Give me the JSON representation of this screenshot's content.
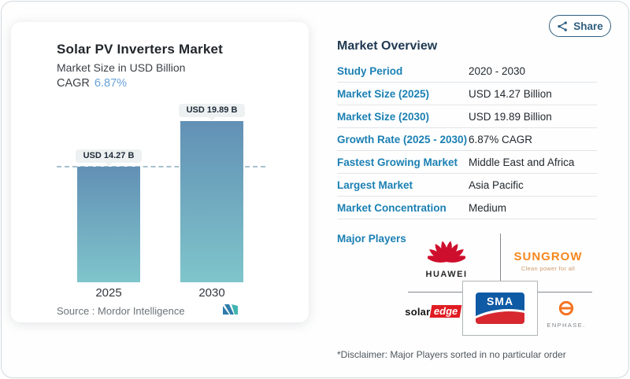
{
  "share": {
    "label": "Share"
  },
  "chart": {
    "title": "Solar PV Inverters Market",
    "subtitle": "Market Size in USD Billion",
    "cagr_label": "CAGR",
    "cagr_value": "6.87%",
    "source": "Source :  Mordor Intelligence"
  },
  "chart_data": {
    "type": "bar",
    "title": "Solar PV Inverters Market",
    "ylabel": "Market Size in USD Billion",
    "categories": [
      "2025",
      "2030"
    ],
    "values": [
      14.27,
      19.89
    ],
    "labels": [
      "USD 14.27 B",
      "USD 19.89 B"
    ],
    "reference_line": 14.27,
    "cagr": "6.87%",
    "grid": false,
    "legend": "none"
  },
  "overview": {
    "heading": "Market Overview",
    "rows": [
      {
        "label": "Study Period",
        "value": "2020 - 2030"
      },
      {
        "label": "Market Size (2025)",
        "value": "USD 14.27 Billion"
      },
      {
        "label": "Market Size (2030)",
        "value": "USD 19.89 Billion"
      },
      {
        "label": "Growth Rate (2025 - 2030)",
        "value": "6.87% CAGR"
      },
      {
        "label": "Fastest Growing Market",
        "value": "Middle East and Africa"
      },
      {
        "label": "Largest Market",
        "value": "Asia Pacific"
      },
      {
        "label": "Market Concentration",
        "value": "Medium"
      }
    ],
    "major_players_label": "Major Players",
    "players": {
      "huawei": {
        "name": "HUAWEI"
      },
      "sungrow": {
        "name": "SUNGROW",
        "tagline": "Clean power for all"
      },
      "solaredge": {
        "name_black": "solar",
        "name_red": "edge"
      },
      "sma": {
        "name": "SMA"
      },
      "enphase": {
        "name": "ENPHASE."
      }
    },
    "disclaimer": "*Disclaimer: Major Players sorted in no particular order"
  },
  "colors": {
    "accent": "#1b80b3",
    "cagr_blue": "#68a2d8",
    "bar_top": "#6290b5",
    "bar_bottom": "#7fc5cb",
    "share": "#2f5e7e",
    "huawei_red": "#ce0e2d",
    "sungrow_orange": "#f6871f",
    "solaredge_red": "#e01b22",
    "sma_blue": "#0e5aa5",
    "sma_red": "#d7282f",
    "enphase_orange": "#f37320"
  }
}
